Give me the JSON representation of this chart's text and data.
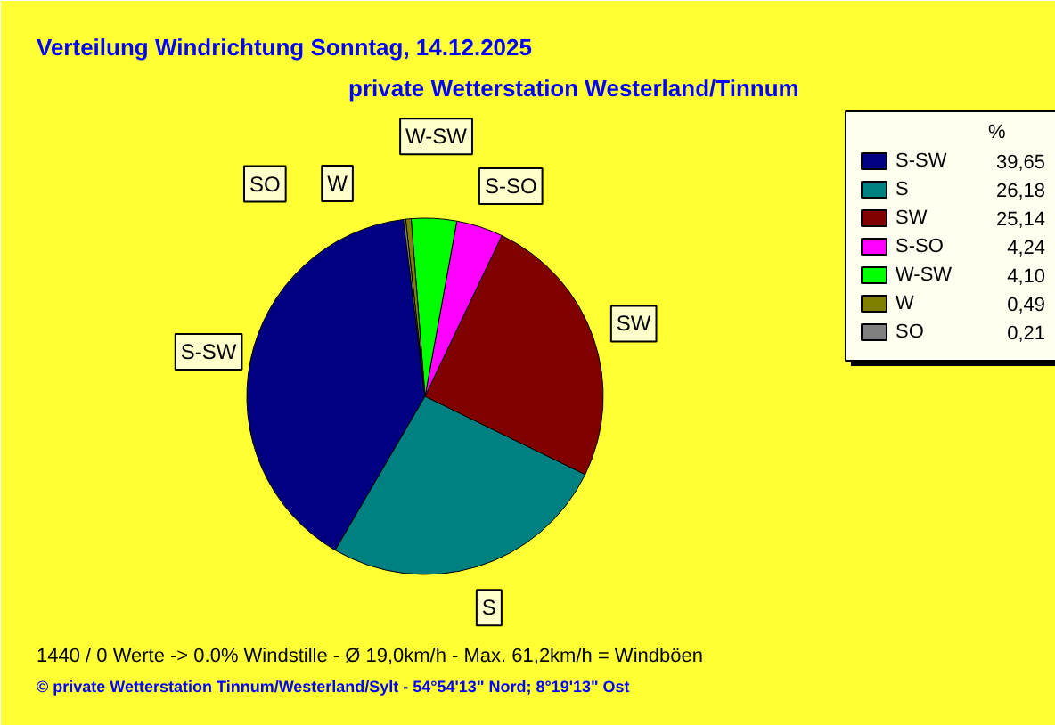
{
  "chart_data": {
    "type": "pie",
    "title": "Verteilung Windrichtung   Sonntag, 14.12.2025",
    "subtitle": "private Wetterstation Westerland/Tinnum",
    "categories": [
      "S-SW",
      "S",
      "SW",
      "S-SO",
      "W-SW",
      "W",
      "SO"
    ],
    "values": [
      39.65,
      26.18,
      25.14,
      4.24,
      4.1,
      0.49,
      0.21
    ],
    "value_labels": [
      "39,65",
      "26,18",
      "25,14",
      "4,24",
      "4,10",
      "0,49",
      "0,21"
    ],
    "colors": [
      "#000080",
      "#008080",
      "#800000",
      "#ff00ff",
      "#00ff00",
      "#808000",
      "#808080"
    ],
    "legend": "top right",
    "legend_title": "%",
    "annotations": [
      "1440 / 0 Werte  -> 0.0% Windstille   -   Ø 19,0km/h  -  Max. 61,2km/h = Windböen",
      "© private Wetterstation Tinnum/Westerland/Sylt   -   54°54'13\" Nord; 8°19'13\" Ost"
    ]
  }
}
